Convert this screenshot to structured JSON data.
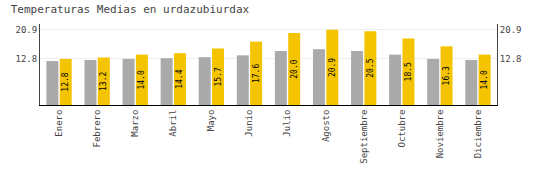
{
  "chart_data": {
    "type": "bar",
    "title": "Temperaturas Medias en urdazubiurdax",
    "categories": [
      "Enero",
      "Febrero",
      "Marzo",
      "Abril",
      "Mayo",
      "Junio",
      "Julio",
      "Agosto",
      "Septiembre",
      "Octubre",
      "Noviembre",
      "Diciembre"
    ],
    "series": [
      {
        "color": "#AAAAAA",
        "values": [
          12.2,
          12.5,
          12.8,
          13.0,
          13.3,
          13.8,
          15.0,
          15.5,
          15.0,
          14.0,
          12.8,
          12.5
        ]
      },
      {
        "color": "#F5C400",
        "values": [
          12.8,
          13.2,
          14.0,
          14.4,
          15.7,
          17.6,
          20.0,
          20.9,
          20.5,
          18.5,
          16.3,
          14.0
        ],
        "data_labels": true,
        "value_labels": [
          "12.8",
          "13.2",
          "14.0",
          "14.4",
          "15.7",
          "17.6",
          "20.0",
          "20.9",
          "20.5",
          "18.5",
          "16.3",
          "14.0"
        ]
      }
    ],
    "ylim": [
      0,
      22.5
    ],
    "yticks": [
      12.8,
      20.9
    ],
    "y2lim": [
      0,
      22.5
    ],
    "y2ticks": [
      12.8,
      20.9
    ],
    "grid": true,
    "legend": false
  }
}
